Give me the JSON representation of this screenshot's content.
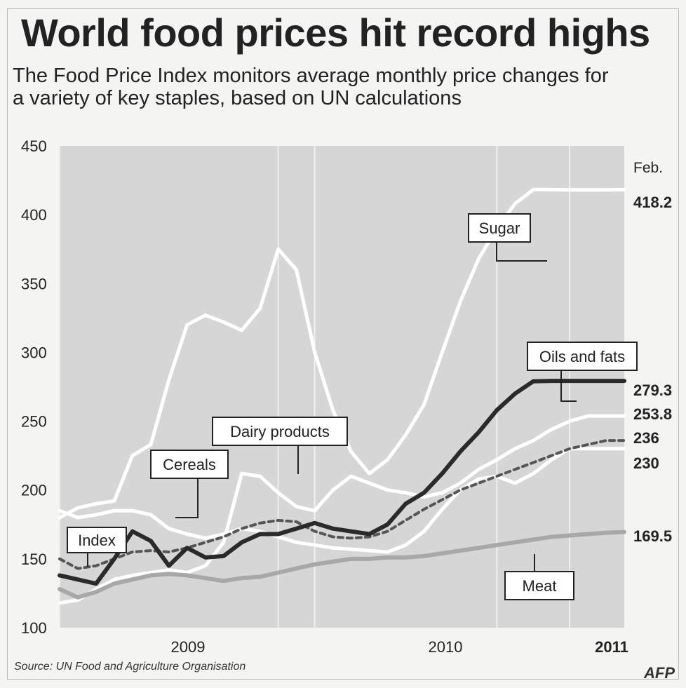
{
  "header": {
    "title": "World food prices hit record highs",
    "subtitle_line1": "The Food Price Index monitors average monthly price changes for",
    "subtitle_line2": "a variety of key staples, based on UN calculations"
  },
  "footer": {
    "source": "Source: UN Food and Agriculture Organisation",
    "credit": "AFP"
  },
  "chart_data": {
    "type": "line",
    "title": "World food prices hit record highs",
    "ylim": [
      100,
      450
    ],
    "y_ticks": [
      450,
      400,
      350,
      300,
      250,
      200,
      150,
      100
    ],
    "x_ticks": [
      {
        "label": "2009",
        "x": 2009.0
      },
      {
        "label": "2010",
        "x": 2010.0
      },
      {
        "label": "2011",
        "x": 2011.0
      }
    ],
    "xlim": [
      2008.5,
      2011.083
    ],
    "end_label_header": "Feb.",
    "colors": {
      "plot_bg": "#d6d6d6",
      "white_line": "#ffffff",
      "oils": "#2a2a2a",
      "index": "#555555",
      "meat": "#a8a8a8"
    },
    "series": [
      {
        "name": "Sugar",
        "end_value": "418.2",
        "x": [
          2008.5,
          2008.583,
          2008.667,
          2008.75,
          2008.833,
          2008.917,
          2009.0,
          2009.083,
          2009.167,
          2009.25,
          2009.333,
          2009.417,
          2009.5,
          2009.583,
          2009.667,
          2009.75,
          2009.833,
          2009.917,
          2010.0,
          2010.083,
          2010.167,
          2010.25,
          2010.333,
          2010.417,
          2010.5,
          2010.583,
          2010.667,
          2010.75,
          2010.833,
          2010.917,
          2011.0,
          2011.083
        ],
        "values": [
          180,
          187,
          190,
          192,
          225,
          233,
          280,
          320,
          327,
          322,
          316,
          332,
          375,
          360,
          300,
          258,
          228,
          212,
          222,
          240,
          262,
          300,
          337,
          368,
          390,
          408,
          418.2,
          418.2,
          418,
          418,
          418,
          418.2
        ]
      },
      {
        "name": "Oils and fats",
        "end_value": "279.3",
        "x": [
          2008.5,
          2008.583,
          2008.667,
          2008.75,
          2008.833,
          2008.917,
          2009.0,
          2009.083,
          2009.167,
          2009.25,
          2009.333,
          2009.417,
          2009.5,
          2009.583,
          2009.667,
          2009.75,
          2009.833,
          2009.917,
          2010.0,
          2010.083,
          2010.167,
          2010.25,
          2010.333,
          2010.417,
          2010.5,
          2010.583,
          2010.667,
          2010.75,
          2010.833,
          2010.917,
          2011.0,
          2011.083
        ],
        "values": [
          138,
          135,
          132,
          150,
          170,
          163,
          145,
          158,
          151,
          152,
          162,
          168,
          168,
          172,
          176,
          172,
          170,
          168,
          175,
          190,
          198,
          212,
          228,
          242,
          258,
          270,
          279,
          279.3,
          279.3,
          279.3,
          279.3,
          279.3
        ]
      },
      {
        "name": "Dairy products",
        "end_value": "253.8",
        "x": [
          2008.5,
          2008.583,
          2008.667,
          2008.75,
          2008.833,
          2008.917,
          2009.0,
          2009.083,
          2009.167,
          2009.25,
          2009.333,
          2009.417,
          2009.5,
          2009.583,
          2009.667,
          2009.75,
          2009.833,
          2009.917,
          2010.0,
          2010.083,
          2010.167,
          2010.25,
          2010.333,
          2010.417,
          2010.5,
          2010.583,
          2010.667,
          2010.75,
          2010.833,
          2010.917,
          2011.0,
          2011.083
        ],
        "values": [
          118,
          120,
          128,
          135,
          138,
          140,
          142,
          140,
          145,
          162,
          212,
          210,
          198,
          188,
          185,
          200,
          210,
          205,
          200,
          198,
          195,
          198,
          205,
          215,
          222,
          230,
          236,
          244,
          250,
          253.8,
          253.8,
          253.8
        ]
      },
      {
        "name": "Cereals",
        "end_value": "230",
        "x": [
          2008.5,
          2008.583,
          2008.667,
          2008.75,
          2008.833,
          2008.917,
          2009.0,
          2009.083,
          2009.167,
          2009.25,
          2009.333,
          2009.417,
          2009.5,
          2009.583,
          2009.667,
          2009.75,
          2009.833,
          2009.917,
          2010.0,
          2010.083,
          2010.167,
          2010.25,
          2010.333,
          2010.417,
          2010.5,
          2010.583,
          2010.667,
          2010.75,
          2010.833,
          2010.917,
          2011.0,
          2011.083
        ],
        "values": [
          185,
          180,
          182,
          185,
          185,
          182,
          172,
          168,
          165,
          168,
          172,
          170,
          166,
          162,
          160,
          158,
          157,
          156,
          155,
          160,
          170,
          186,
          200,
          208,
          210,
          205,
          212,
          222,
          230,
          230,
          230,
          230
        ]
      },
      {
        "name": "Index",
        "end_value": "236",
        "x": [
          2008.5,
          2008.583,
          2008.667,
          2008.75,
          2008.833,
          2008.917,
          2009.0,
          2009.083,
          2009.167,
          2009.25,
          2009.333,
          2009.417,
          2009.5,
          2009.583,
          2009.667,
          2009.75,
          2009.833,
          2009.917,
          2010.0,
          2010.083,
          2010.167,
          2010.25,
          2010.333,
          2010.417,
          2010.5,
          2010.583,
          2010.667,
          2010.75,
          2010.833,
          2010.917,
          2011.0,
          2011.083
        ],
        "values": [
          150,
          143,
          145,
          150,
          155,
          156,
          155,
          158,
          162,
          166,
          172,
          176,
          178,
          177,
          170,
          166,
          165,
          166,
          170,
          178,
          186,
          193,
          200,
          205,
          210,
          215,
          220,
          225,
          230,
          233,
          236,
          236
        ]
      },
      {
        "name": "Meat",
        "end_value": "169.5",
        "x": [
          2008.5,
          2008.583,
          2008.667,
          2008.75,
          2008.833,
          2008.917,
          2009.0,
          2009.083,
          2009.167,
          2009.25,
          2009.333,
          2009.417,
          2009.5,
          2009.583,
          2009.667,
          2009.75,
          2009.833,
          2009.917,
          2010.0,
          2010.083,
          2010.167,
          2010.25,
          2010.333,
          2010.417,
          2010.5,
          2010.583,
          2010.667,
          2010.75,
          2010.833,
          2010.917,
          2011.0,
          2011.083
        ],
        "values": [
          128,
          122,
          126,
          132,
          135,
          138,
          139,
          138,
          136,
          134,
          136,
          137,
          140,
          143,
          146,
          148,
          150,
          150,
          151,
          151,
          152,
          154,
          156,
          158,
          160,
          162,
          164,
          166,
          167,
          168,
          169,
          169.5
        ]
      }
    ]
  }
}
